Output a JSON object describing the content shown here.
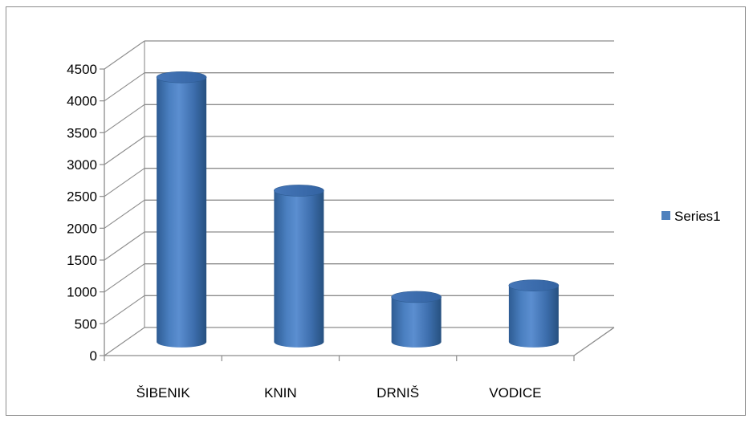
{
  "chart_data": {
    "type": "bar",
    "title": "",
    "xlabel": "",
    "ylabel": "",
    "categories": [
      "ŠIBENIK",
      "KNIN",
      "DRNIŠ",
      "VODICE"
    ],
    "series": [
      {
        "name": "Series1",
        "values": [
          4150,
          2370,
          700,
          880
        ],
        "color": "#4F81BD"
      }
    ],
    "ylim": [
      0,
      4500
    ],
    "yticks": [
      "0",
      "500",
      "1000",
      "1500",
      "2000",
      "2500",
      "3000",
      "3500",
      "4000",
      "4500"
    ],
    "grid": true,
    "legend": "right",
    "style": "3d-cylinder"
  }
}
